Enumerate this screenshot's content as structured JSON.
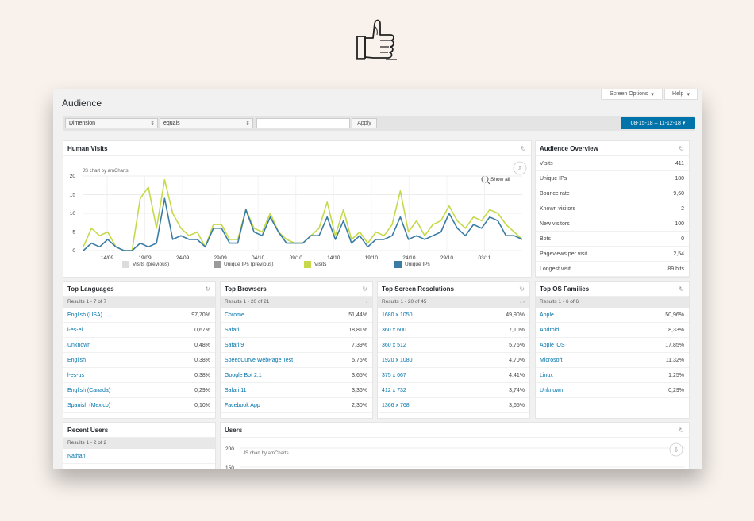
{
  "page": {
    "title": "Audience"
  },
  "top_buttons": {
    "screen_options": "Screen Options",
    "help": "Help",
    "arrow": "▾"
  },
  "filter": {
    "dimension": "Dimension",
    "operator": "equals",
    "value": "",
    "apply": "Apply",
    "date_range": "08-15-18 – 11-12-18",
    "date_arrow": "▾"
  },
  "human_visits": {
    "title": "Human Visits",
    "credit": "JS chart by amCharts",
    "show_all": "Show all",
    "legend": [
      "Visits (previous)",
      "Unique IPs (previous)",
      "Visits",
      "Unique IPs"
    ]
  },
  "chart_data": {
    "type": "line",
    "x_ticks": [
      "14/09",
      "19/09",
      "24/09",
      "29/09",
      "04/10",
      "09/10",
      "14/10",
      "19/10",
      "24/10",
      "29/10",
      "03/11"
    ],
    "ylim": [
      0,
      20
    ],
    "y_ticks": [
      0,
      5,
      10,
      15,
      20
    ],
    "series": [
      {
        "name": "Visits",
        "color": "#c5d94a",
        "values": [
          1,
          6,
          4,
          5,
          1,
          0,
          0,
          14,
          17,
          6,
          19,
          10,
          6,
          4,
          5,
          1,
          7,
          7,
          3,
          3,
          11,
          6,
          5,
          10,
          5,
          3,
          2,
          2,
          4,
          6,
          13,
          4,
          11,
          3,
          5,
          2,
          5,
          4,
          7,
          16,
          5,
          8,
          4,
          7,
          8,
          12,
          8,
          6,
          9,
          8,
          11,
          10,
          7,
          5,
          3
        ]
      },
      {
        "name": "Unique IPs",
        "color": "#3a7ca5",
        "values": [
          0,
          2,
          1,
          3,
          1,
          0,
          0,
          2,
          1,
          2,
          14,
          3,
          4,
          3,
          3,
          1,
          6,
          6,
          2,
          2,
          11,
          5,
          4,
          9,
          5,
          2,
          2,
          2,
          4,
          4,
          9,
          3,
          8,
          2,
          4,
          1,
          3,
          3,
          4,
          9,
          3,
          4,
          3,
          4,
          5,
          10,
          6,
          4,
          7,
          6,
          9,
          8,
          4,
          4,
          3
        ]
      }
    ]
  },
  "audience_overview": {
    "title": "Audience Overview",
    "rows": [
      {
        "label": "Visits",
        "value": "411"
      },
      {
        "label": "Unique IPs",
        "value": "180"
      },
      {
        "label": "Bounce rate",
        "value": "9,60"
      },
      {
        "label": "Known visitors",
        "value": "2"
      },
      {
        "label": "New visitors",
        "value": "100"
      },
      {
        "label": "Bots",
        "value": "0"
      },
      {
        "label": "Pageviews per visit",
        "value": "2,54"
      },
      {
        "label": "Longest visit",
        "value": "89 hits"
      }
    ]
  },
  "top_languages": {
    "title": "Top Languages",
    "results": "Results 1 - 7 of 7",
    "pager": "",
    "rows": [
      {
        "label": "English (USA)",
        "value": "97,70%"
      },
      {
        "label": "l-es-el",
        "value": "0,67%"
      },
      {
        "label": "Unknown",
        "value": "0,48%"
      },
      {
        "label": "English",
        "value": "0,38%"
      },
      {
        "label": "l-es-us",
        "value": "0,38%"
      },
      {
        "label": "English (Canada)",
        "value": "0,29%"
      },
      {
        "label": "Spanish (Mexico)",
        "value": "0,10%"
      }
    ]
  },
  "top_browsers": {
    "title": "Top Browsers",
    "results": "Results 1 - 20 of 21",
    "pager": "›",
    "rows": [
      {
        "label": "Chrome",
        "value": "51,44%"
      },
      {
        "label": "Safari",
        "value": "18,81%"
      },
      {
        "label": "Safari 9",
        "value": "7,39%"
      },
      {
        "label": "SpeedCurve WebPage Test",
        "value": "5,76%"
      },
      {
        "label": "Google Bot 2.1",
        "value": "3,65%"
      },
      {
        "label": "Safari 11",
        "value": "3,36%"
      },
      {
        "label": "Facebook App",
        "value": "2,30%"
      }
    ]
  },
  "top_resolutions": {
    "title": "Top Screen Resolutions",
    "results": "Results 1 - 20 of 45",
    "pager": "› ›",
    "rows": [
      {
        "label": "1680 x 1050",
        "value": "49,90%"
      },
      {
        "label": "360 x 600",
        "value": "7,10%"
      },
      {
        "label": "360 x 512",
        "value": "5,76%"
      },
      {
        "label": "1920 x 1080",
        "value": "4,70%"
      },
      {
        "label": "375 x 667",
        "value": "4,41%"
      },
      {
        "label": "412 x 732",
        "value": "3,74%"
      },
      {
        "label": "1366 x 768",
        "value": "3,65%"
      }
    ]
  },
  "top_os": {
    "title": "Top OS Families",
    "results": "Results 1 - 6 of 6",
    "pager": "",
    "rows": [
      {
        "label": "Apple",
        "value": "50,96%"
      },
      {
        "label": "Android",
        "value": "18,33%"
      },
      {
        "label": "Apple iOS",
        "value": "17,85%"
      },
      {
        "label": "Microsoft",
        "value": "11,32%"
      },
      {
        "label": "Linux",
        "value": "1,25%"
      },
      {
        "label": "Unknown",
        "value": "0,29%"
      }
    ]
  },
  "recent_users": {
    "title": "Recent Users",
    "results": "Results 1 - 2 of 2",
    "rows": [
      {
        "label": "Nathan"
      }
    ]
  },
  "users_chart": {
    "title": "Users",
    "credit": "JS chart by amCharts",
    "y_ticks": [
      "200",
      "150"
    ]
  }
}
